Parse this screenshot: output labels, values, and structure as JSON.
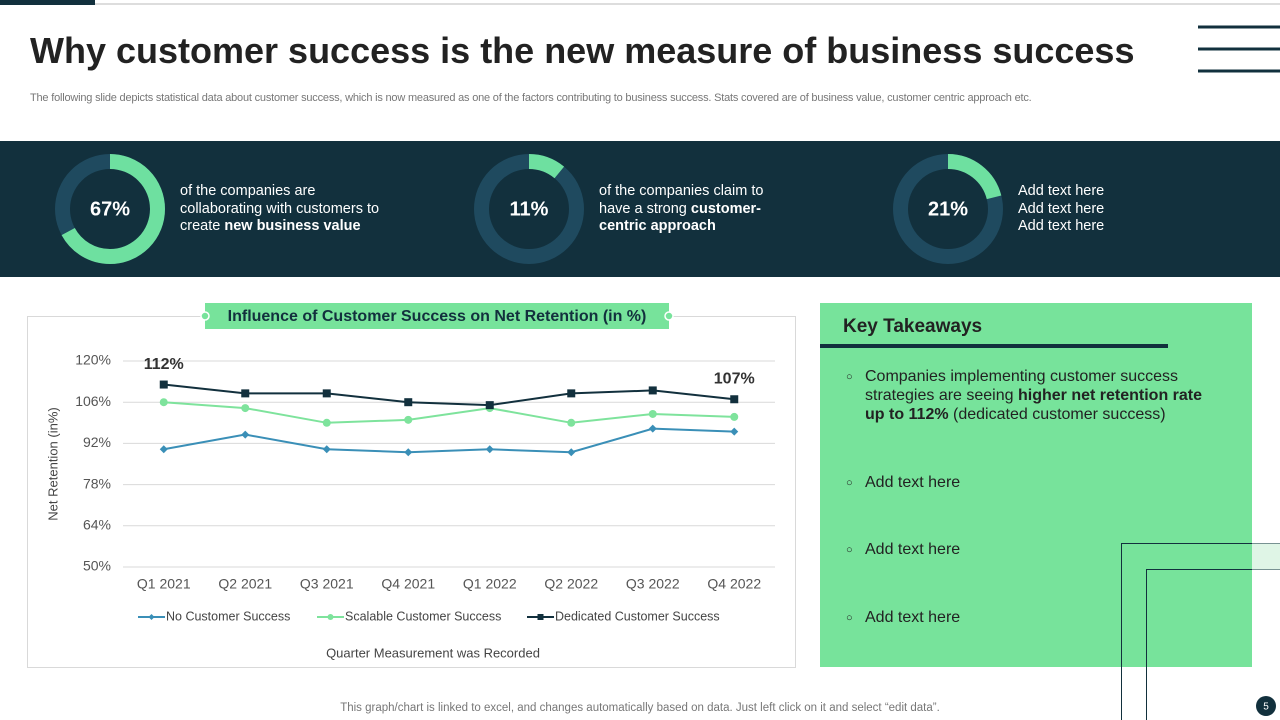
{
  "header": {
    "title": "Why customer success is the new measure of business success",
    "subtitle": "The following slide depicts statistical data about customer success, which is now measured as one of the factors contributing to business success. Stats covered are of business value, customer centric approach etc."
  },
  "stats": [
    {
      "value": 67,
      "label": "67%",
      "segments": [
        {
          "text": "of the companies are collaborating with customers to create "
        },
        {
          "text": "new business value",
          "bold": true
        }
      ]
    },
    {
      "value": 11,
      "label": "11%",
      "segments": [
        {
          "text": "of the companies claim to have a strong "
        },
        {
          "text": "customer-centric approach",
          "bold": true
        }
      ]
    },
    {
      "value": 21,
      "label": "21%",
      "lines": [
        "Add text here",
        "Add text here",
        "Add text here"
      ]
    }
  ],
  "chart_data": {
    "type": "line",
    "title": "Influence of Customer Success on Net Retention (in %)",
    "xlabel": "Quarter Measurement was Recorded",
    "ylabel": "Net Retention (in%)",
    "categories": [
      "Q1 2021",
      "Q2 2021",
      "Q3 2021",
      "Q4 2021",
      "Q1 2022",
      "Q2 2022",
      "Q3 2022",
      "Q4 2022"
    ],
    "series": [
      {
        "name": "No Customer Success",
        "color": "#3a8fb7",
        "marker": "diamond",
        "values": [
          90,
          95,
          90,
          89,
          90,
          89,
          97,
          96
        ]
      },
      {
        "name": "Scalable Customer Success",
        "color": "#7ee39c",
        "marker": "circle",
        "values": [
          106,
          104,
          99,
          100,
          104,
          99,
          102,
          101
        ]
      },
      {
        "name": "Dedicated Customer Success",
        "color": "#12303d",
        "marker": "square",
        "values": [
          112,
          109,
          109,
          106,
          105,
          109,
          110,
          107
        ],
        "value_labels": [
          "112%",
          null,
          null,
          null,
          null,
          null,
          null,
          "107%"
        ]
      }
    ],
    "ylim": [
      50,
      120
    ],
    "yticks": [
      {
        "value": 50,
        "label": "50%"
      },
      {
        "value": 64,
        "label": "64%"
      },
      {
        "value": 78,
        "label": "78%"
      },
      {
        "value": 92,
        "label": "92%"
      },
      {
        "value": 106,
        "label": "106%"
      },
      {
        "value": 120,
        "label": "120%"
      }
    ],
    "grid": true
  },
  "takeaways": {
    "heading": "Key Takeaways",
    "items": [
      {
        "segments": [
          {
            "text": "Companies implementing customer success strategies are seeing "
          },
          {
            "text": "higher net retention rate up to 112%",
            "bold": true
          },
          {
            "text": " (dedicated customer success)"
          }
        ]
      },
      {
        "segments": [
          {
            "text": "Add text here"
          }
        ]
      },
      {
        "segments": [
          {
            "text": "Add text here"
          }
        ]
      },
      {
        "segments": [
          {
            "text": "Add text here"
          }
        ]
      }
    ]
  },
  "footer": {
    "note": "This graph/chart is linked to excel,  and changes automatically based on data. Just left click on it and select “edit data”.",
    "page": "5"
  }
}
